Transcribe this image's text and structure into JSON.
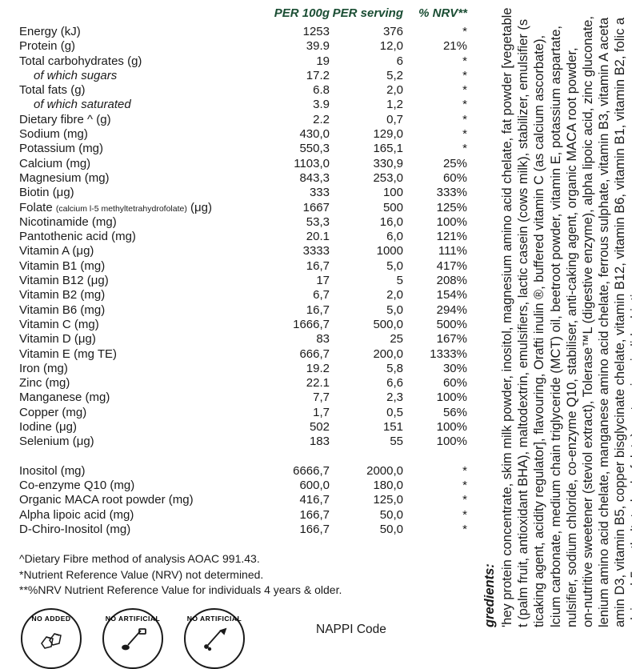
{
  "headers": {
    "c1": "PER 100g",
    "c2": "PER serving",
    "c3": "% NRV**"
  },
  "group1": [
    {
      "label": "Energy (kJ)",
      "c1": "1253",
      "c2": "376",
      "c3": "*"
    },
    {
      "label": "Protein (g)",
      "c1": "39.9",
      "c2": "12,0",
      "c3": "21%"
    },
    {
      "label": "Total carbohydrates (g)",
      "c1": "19",
      "c2": "6",
      "c3": "*"
    },
    {
      "label": "of which sugars",
      "indent": true,
      "c1": "17.2",
      "c2": "5,2",
      "c3": "*"
    },
    {
      "label": "Total fats (g)",
      "c1": "6.8",
      "c2": "2,0",
      "c3": "*"
    },
    {
      "label": "of which saturated",
      "indent": true,
      "c1": "3.9",
      "c2": "1,2",
      "c3": "*"
    },
    {
      "label": "Dietary fibre ^ (g)",
      "c1": "2.2",
      "c2": "0,7",
      "c3": "*"
    },
    {
      "label": "Sodium (mg)",
      "c1": "430,0",
      "c2": "129,0",
      "c3": "*"
    },
    {
      "label": "Potassium (mg)",
      "c1": "550,3",
      "c2": "165,1",
      "c3": "*"
    },
    {
      "label": "Calcium (mg)",
      "c1": "1103,0",
      "c2": "330,9",
      "c3": "25%"
    },
    {
      "label": "Magnesium (mg)",
      "c1": "843,3",
      "c2": "253,0",
      "c3": "60%"
    },
    {
      "label": "Biotin (μg)",
      "c1": "333",
      "c2": "100",
      "c3": "333%"
    },
    {
      "label": "Folate |(calcium l-5 methyltetrahydrofolate)| (μg)",
      "folate": true,
      "c1": "1667",
      "c2": "500",
      "c3": "125%"
    },
    {
      "label": "Nicotinamide (mg)",
      "c1": "53,3",
      "c2": "16,0",
      "c3": "100%"
    },
    {
      "label": "Pantothenic acid (mg)",
      "c1": "20.1",
      "c2": "6,0",
      "c3": "121%"
    },
    {
      "label": "Vitamin A (μg)",
      "c1": "3333",
      "c2": "1000",
      "c3": "111%"
    },
    {
      "label": "Vitamin B1 (mg)",
      "c1": "16,7",
      "c2": "5,0",
      "c3": "417%"
    },
    {
      "label": "Vitamin B12 (μg)",
      "c1": "17",
      "c2": "5",
      "c3": "208%"
    },
    {
      "label": "Vitamin B2 (mg)",
      "c1": "6,7",
      "c2": "2,0",
      "c3": "154%"
    },
    {
      "label": "Vitamin B6 (mg)",
      "c1": "16,7",
      "c2": "5,0",
      "c3": "294%"
    },
    {
      "label": "Vitamin C (mg)",
      "c1": "1666,7",
      "c2": "500,0",
      "c3": "500%"
    },
    {
      "label": "Vitamin D (μg)",
      "c1": "83",
      "c2": "25",
      "c3": "167%"
    },
    {
      "label": "Vitamin E (mg TE)",
      "c1": "666,7",
      "c2": "200,0",
      "c3": "1333%"
    },
    {
      "label": "Iron (mg)",
      "c1": "19.2",
      "c2": "5,8",
      "c3": "30%"
    },
    {
      "label": "Zinc (mg)",
      "c1": "22.1",
      "c2": "6,6",
      "c3": "60%"
    },
    {
      "label": "Manganese (mg)",
      "c1": "7,7",
      "c2": "2,3",
      "c3": "100%"
    },
    {
      "label": "Copper (mg)",
      "c1": "1,7",
      "c2": "0,5",
      "c3": "56%"
    },
    {
      "label": "Iodine (μg)",
      "c1": "502",
      "c2": "151",
      "c3": "100%"
    },
    {
      "label": "Selenium (μg)",
      "c1": "183",
      "c2": "55",
      "c3": "100%"
    }
  ],
  "group2": [
    {
      "label": "Inositol (mg)",
      "c1": "6666,7",
      "c2": "2000,0",
      "c3": "*"
    },
    {
      "label": "Co-enzyme Q10 (mg)",
      "c1": "600,0",
      "c2": "180,0",
      "c3": "*"
    },
    {
      "label": "Organic MACA root powder (mg)",
      "c1": "416,7",
      "c2": "125,0",
      "c3": "*"
    },
    {
      "label": "Alpha lipoic acid (mg)",
      "c1": "166,7",
      "c2": "50,0",
      "c3": "*"
    },
    {
      "label": "D-Chiro-Inositol (mg)",
      "c1": "166,7",
      "c2": "50,0",
      "c3": "*"
    }
  ],
  "footnotes": [
    "^Dietary Fibre method of analysis AOAC 991.43.",
    "*Nutrient Reference Value (NRV) not determined.",
    "**%NRV Nutrient Reference Value for individuals 4 years & older."
  ],
  "badges": [
    {
      "top": "NO ADDED",
      "type": "sugar"
    },
    {
      "top": "NO ARTIFICIAL",
      "type": "flavour"
    },
    {
      "top": "NO ARTIFICIAL",
      "type": "colour"
    }
  ],
  "nappi": "NAPPI Code",
  "ingredients": {
    "title": "gredients:",
    "lines": [
      "'hey protein concentrate, skim milk powder, inositol, magnesium amino acid chelate, fat powder [vegetable",
      "t (palm fruit, antioxidant BHA), maltodextrin, emulsifiers, lactic casein (cows milk), stabilizer, emulsifier (s",
      "ticaking agent, acidity regulator], flavouring, Orafti inulin ®, buffered vitamin C (as calcium ascorbate),",
      "lcium carbonate, medium chain triglyceride (MCT) oil, beetroot powder, vitamin E, potassium aspartate,",
      "nulsifier, sodium chloride, co-enzyme Q10, stabiliser, anti-caking agent, organic MACA root powder,",
      "on-nutritive sweetener (steviol extract), Tolerase™L (digestive enzyme), alpha lipoic acid, zinc gluconate,",
      "lenium amino acid chelate, manganese amino acid chelate, ferrous sulphate, vitamin B3, vitamin A aceta",
      "amin D3, vitamin B5, copper bisglycinate chelate, vitamin B12, vitamin B6, vitamin B1, vitamin B2, folic a",
      "alcium l-5 methyltetrahydrofolate), potassium iodide, biotin."
    ]
  },
  "colors": {
    "text": "#1a1a1a",
    "header": "#1a4d33",
    "background": "#ffffff"
  }
}
